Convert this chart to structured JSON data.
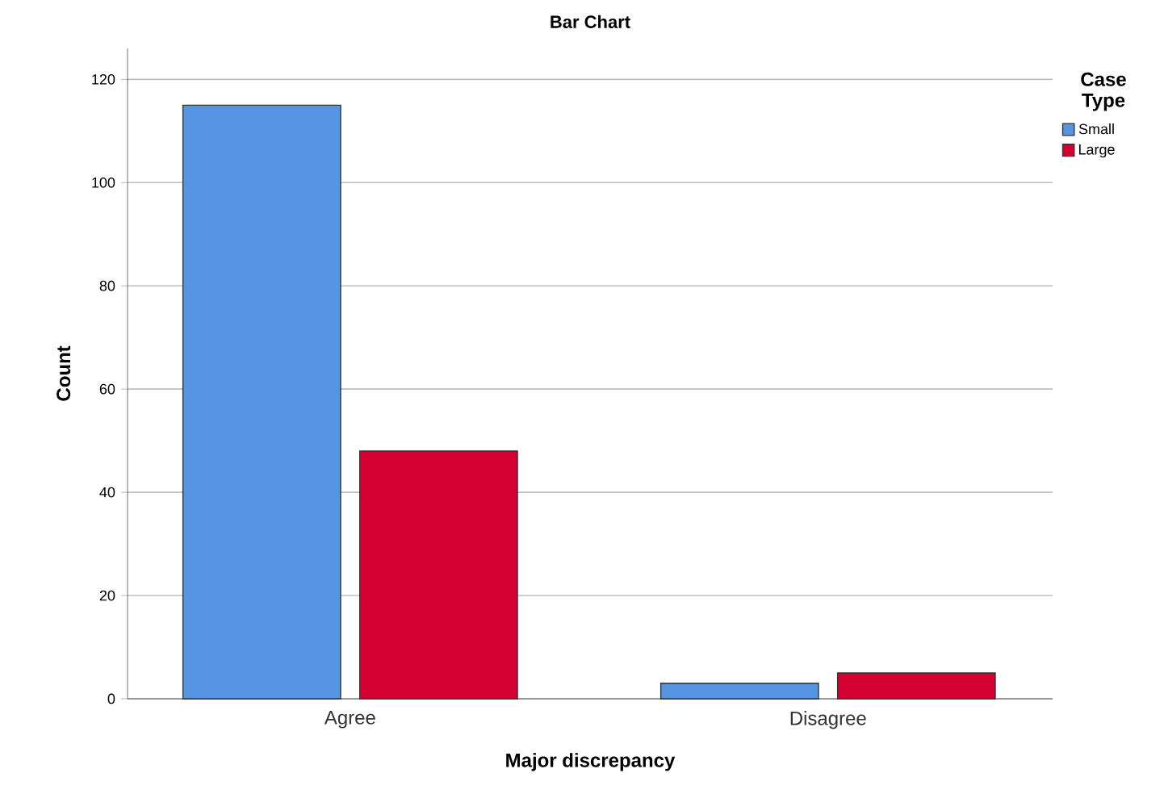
{
  "chart_data": {
    "type": "bar",
    "title": "Bar Chart",
    "xlabel": "Major discrepancy",
    "ylabel": "Count",
    "legend_title": "Case Type",
    "categories": [
      "Agree",
      "Disagree"
    ],
    "series": [
      {
        "name": "Small",
        "color": "#5595e3",
        "values": [
          115,
          3
        ]
      },
      {
        "name": "Large",
        "color": "#d5002f",
        "values": [
          48,
          5
        ]
      }
    ],
    "ylim": [
      0,
      126
    ],
    "yticks": [
      0,
      20,
      40,
      60,
      80,
      100,
      120
    ],
    "grid": "y",
    "legend": "top right"
  }
}
